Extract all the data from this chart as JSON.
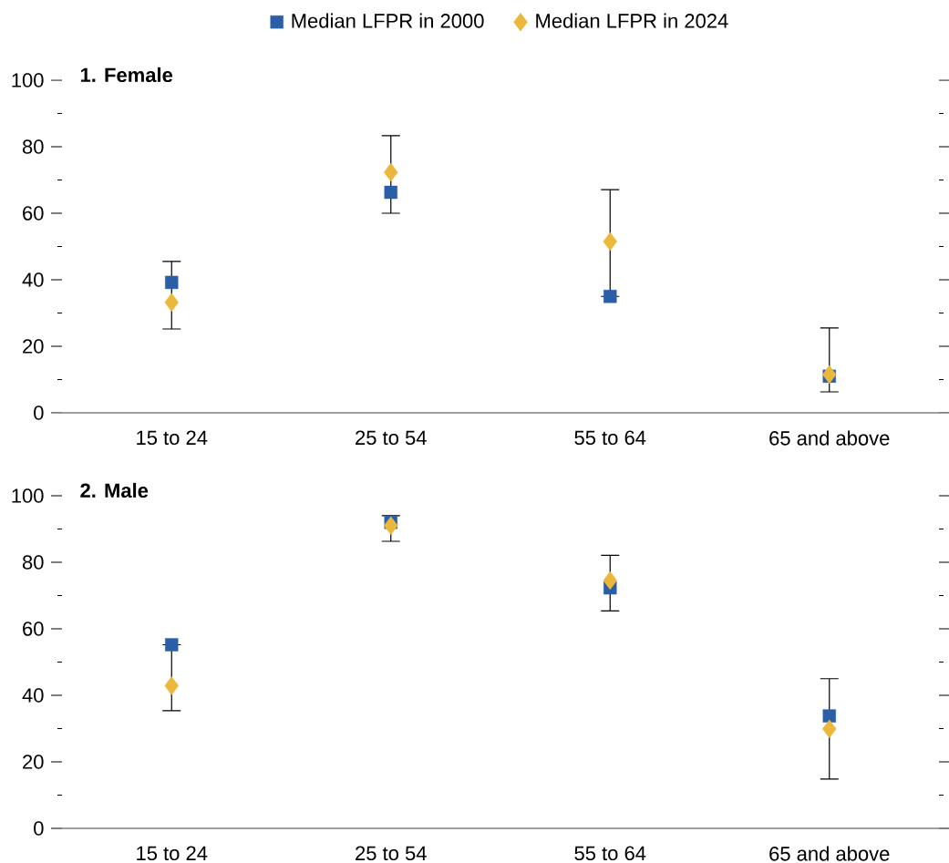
{
  "chart_data": [
    {
      "type": "scatter",
      "title": "**1. Female**",
      "categories": [
        "15 to 24",
        "25 to 54",
        "55 to 64",
        "65 and above"
      ],
      "series": [
        {
          "name": "Median LFPR in 2000",
          "color": "#2a5fa8",
          "marker": "square",
          "values": [
            39.2,
            66.3,
            35,
            11
          ],
          "errors": [
            [
              25.2,
              45.5
            ],
            [
              60,
              83.3
            ],
            [
              35,
              67.1
            ],
            [
              6.3,
              25.5
            ]
          ]
        },
        {
          "name": "Median LFPR in 2024",
          "color": "#ebb83c",
          "marker": "diamond",
          "values": [
            33.2,
            72.3,
            51.5,
            11.5
          ]
        }
      ],
      "ylim": [
        0,
        100
      ],
      "yticks": [
        0,
        {
          "value": 10,
          "label": null
        },
        20,
        {
          "value": 30,
          "label": null
        },
        40,
        {
          "value": 50,
          "label": null
        },
        60,
        {
          "value": 70,
          "label": null
        },
        80,
        {
          "value": 90,
          "label": null
        },
        100
      ],
      "legend": "top"
    },
    {
      "type": "scatter",
      "title": "**2. Male**",
      "categories": [
        "15 to 24",
        "25 to 54",
        "55 to 64",
        "65 and above"
      ],
      "series": [
        {
          "color": "#2a5fa8",
          "marker": "square",
          "values": [
            55.2,
            92,
            72.3,
            33.8
          ],
          "errors": [
            [
              35.4,
              55.2
            ],
            [
              86.3,
              94
            ],
            [
              65.4,
              82.1
            ],
            [
              14.8,
              45
            ]
          ]
        },
        {
          "color": "#ebb83c",
          "marker": "diamond",
          "values": [
            42.9,
            91,
            74.5,
            29.9
          ]
        }
      ],
      "ylim": [
        0,
        100
      ],
      "yticks": [
        0,
        {
          "value": 10,
          "label": null
        },
        20,
        {
          "value": 30,
          "label": null
        },
        40,
        {
          "value": 50,
          "label": null
        },
        60,
        {
          "value": 70,
          "label": null
        },
        80,
        {
          "value": 90,
          "label": null
        },
        100
      ]
    }
  ]
}
